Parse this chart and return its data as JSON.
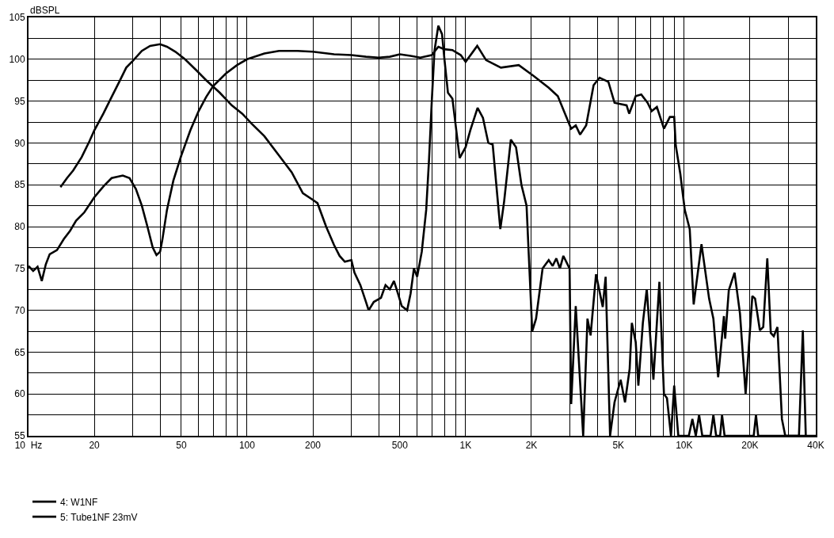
{
  "chart_data": {
    "type": "line",
    "ylabel": "dBSPL",
    "log": "x",
    "grid": true,
    "legend": "bottom left",
    "marker": "none",
    "line_style": "solid",
    "xlim": [
      10,
      40000
    ],
    "ylim": [
      55,
      105
    ],
    "xticks": [
      {
        "value": 10,
        "label": "10  Hz"
      },
      20,
      {
        "value": 30,
        "label": null
      },
      {
        "value": 40,
        "label": null
      },
      50,
      {
        "value": 60,
        "label": null
      },
      {
        "value": 70,
        "label": null
      },
      {
        "value": 80,
        "label": null
      },
      {
        "value": 90,
        "label": null
      },
      100,
      200,
      {
        "value": 300,
        "label": null
      },
      {
        "value": 400,
        "label": null
      },
      500,
      {
        "value": 600,
        "label": null
      },
      {
        "value": 700,
        "label": null
      },
      {
        "value": 800,
        "label": null
      },
      {
        "value": 900,
        "label": null
      },
      {
        "value": 1000,
        "label": "1K"
      },
      {
        "value": 2000,
        "label": "2K"
      },
      {
        "value": 3000,
        "label": null
      },
      {
        "value": 4000,
        "label": null
      },
      {
        "value": 5000,
        "label": "5K"
      },
      {
        "value": 6000,
        "label": null
      },
      {
        "value": 7000,
        "label": null
      },
      {
        "value": 8000,
        "label": null
      },
      {
        "value": 9000,
        "label": null
      },
      {
        "value": 10000,
        "label": "10K"
      },
      {
        "value": 20000,
        "label": "20K"
      },
      {
        "value": 30000,
        "label": null
      },
      {
        "value": 40000,
        "label": "40K"
      }
    ],
    "yticks": [
      55,
      {
        "value": 57.5,
        "label": null
      },
      60,
      {
        "value": 62.5,
        "label": null
      },
      65,
      {
        "value": 67.5,
        "label": null
      },
      70,
      {
        "value": 72.5,
        "label": null
      },
      75,
      {
        "value": 77.5,
        "label": null
      },
      80,
      {
        "value": 82.5,
        "label": null
      },
      85,
      {
        "value": 87.5,
        "label": null
      },
      90,
      {
        "value": 92.5,
        "label": null
      },
      95,
      {
        "value": 97.5,
        "label": null
      },
      100,
      {
        "value": 102.5,
        "label": null
      },
      105
    ],
    "series": [
      {
        "name": "4: W1NF",
        "color": "#000000",
        "x": [
          10,
          10.5,
          11,
          11.5,
          12,
          12.5,
          13.5,
          14.5,
          15.5,
          16.5,
          18,
          20,
          22,
          24,
          27,
          29,
          31,
          33,
          35,
          37,
          38.5,
          40,
          41,
          43,
          46,
          50,
          55,
          60,
          65,
          70,
          80,
          90,
          100,
          120,
          140,
          170,
          200,
          250,
          300,
          350,
          400,
          450,
          500,
          560,
          620,
          700,
          750,
          800,
          870,
          950,
          1000,
          1130,
          1240,
          1450,
          1750,
          2050,
          2400,
          2640,
          3040,
          3190,
          3340,
          3560,
          3850,
          4100,
          4500,
          4800,
          5450,
          5600,
          6000,
          6360,
          6800,
          7100,
          7500,
          8080,
          8600,
          9000,
          9150,
          9600,
          10060,
          10600,
          11050,
          12000,
          13000,
          13600,
          14300,
          15200,
          15400,
          16000,
          17000,
          18000,
          19100,
          20500,
          21100,
          22200,
          23000,
          24000,
          24900,
          25700,
          26700,
          28000,
          29000,
          33500,
          34900,
          36000
        ],
        "values": [
          75.3,
          74.7,
          75.2,
          73.5,
          75.5,
          76.7,
          77.2,
          78.5,
          79.5,
          80.7,
          81.7,
          83.5,
          84.8,
          85.8,
          86.1,
          85.8,
          84.5,
          82.5,
          80,
          77.5,
          76.6,
          77,
          78.5,
          82,
          85.5,
          88.5,
          91.5,
          93.8,
          95.5,
          96.8,
          98.3,
          99.3,
          100,
          100.7,
          101,
          101,
          100.9,
          100.6,
          100.5,
          100.3,
          100.2,
          100.3,
          100.6,
          100.4,
          100.2,
          100.5,
          101.5,
          101.2,
          101.1,
          100.5,
          99.7,
          101.6,
          99.9,
          99,
          99.3,
          98,
          96.6,
          95.6,
          91.7,
          92.1,
          91,
          92.1,
          96.9,
          97.8,
          97.3,
          94.8,
          94.5,
          93.5,
          95.6,
          95.8,
          94.8,
          93.8,
          94.3,
          91.7,
          93.1,
          93.1,
          89.7,
          86.3,
          82,
          79.7,
          70.7,
          77.9,
          71.4,
          69,
          62,
          69.3,
          66.6,
          72.4,
          74.5,
          69.6,
          60,
          71.7,
          71.4,
          67.6,
          68,
          76.2,
          67.3,
          66.9,
          68,
          57,
          55,
          55,
          67.6,
          55
        ]
      },
      {
        "name": "5: Tube1NF 23mV",
        "color": "#000000",
        "x": [
          14,
          15,
          16,
          17.5,
          19,
          20,
          22,
          24,
          26,
          28,
          30,
          33,
          36,
          40,
          43,
          47,
          52,
          58,
          65,
          75,
          85,
          95,
          105,
          120,
          140,
          160,
          180,
          200,
          210,
          230,
          250,
          265,
          280,
          300,
          310,
          330,
          350,
          360,
          380,
          410,
          430,
          450,
          470,
          490,
          510,
          540,
          560,
          580,
          600,
          630,
          660,
          680,
          700,
          720,
          750,
          780,
          800,
          830,
          870,
          939,
          1000,
          1050,
          1134,
          1200,
          1270,
          1330,
          1441,
          1500,
          1610,
          1700,
          1800,
          1900,
          2017,
          2100,
          2250,
          2400,
          2500,
          2600,
          2700,
          2800,
          2990,
          3040,
          3190,
          3450,
          3610,
          3730,
          3950,
          4240,
          4370,
          4580,
          4800,
          5120,
          5360,
          5630,
          5760,
          6000,
          6170,
          6470,
          6740,
          7230,
          7700,
          8080,
          8340,
          8700,
          9000,
          9400,
          10500,
          10900,
          11300,
          11700,
          12100,
          13200,
          13600,
          14000,
          14600,
          14900,
          15300,
          20800,
          21300,
          21800,
          40000
        ],
        "values": [
          84.7,
          85.8,
          86.7,
          88.3,
          90.2,
          91.5,
          93.5,
          95.5,
          97.3,
          99,
          99.8,
          101,
          101.6,
          101.8,
          101.5,
          100.9,
          100,
          98.8,
          97.5,
          96,
          94.5,
          93.5,
          92.3,
          90.8,
          88.5,
          86.5,
          84,
          83.2,
          82.8,
          80,
          77.8,
          76.5,
          75.8,
          76,
          74.5,
          73,
          71,
          70,
          71,
          71.5,
          73,
          72.5,
          73.5,
          72,
          70.5,
          70,
          72,
          75,
          74,
          77,
          82,
          88,
          95,
          101,
          104,
          103,
          100,
          96,
          95.3,
          88.2,
          89.5,
          91.5,
          94.2,
          93,
          90,
          89.8,
          79.7,
          83,
          90.4,
          89.5,
          85,
          82.5,
          67.5,
          69,
          75,
          76,
          75.3,
          76.2,
          75,
          76.5,
          75,
          58.8,
          70.5,
          55,
          69,
          67,
          74.3,
          70.4,
          74,
          55,
          59,
          61.7,
          59,
          63,
          68.5,
          66.2,
          61,
          68.5,
          72.5,
          61.7,
          73.4,
          60,
          59.5,
          55,
          61,
          55,
          55,
          57,
          55,
          57.5,
          55,
          55,
          57.5,
          55,
          55,
          57.5,
          55,
          55,
          57.5,
          55,
          55
        ]
      }
    ]
  }
}
